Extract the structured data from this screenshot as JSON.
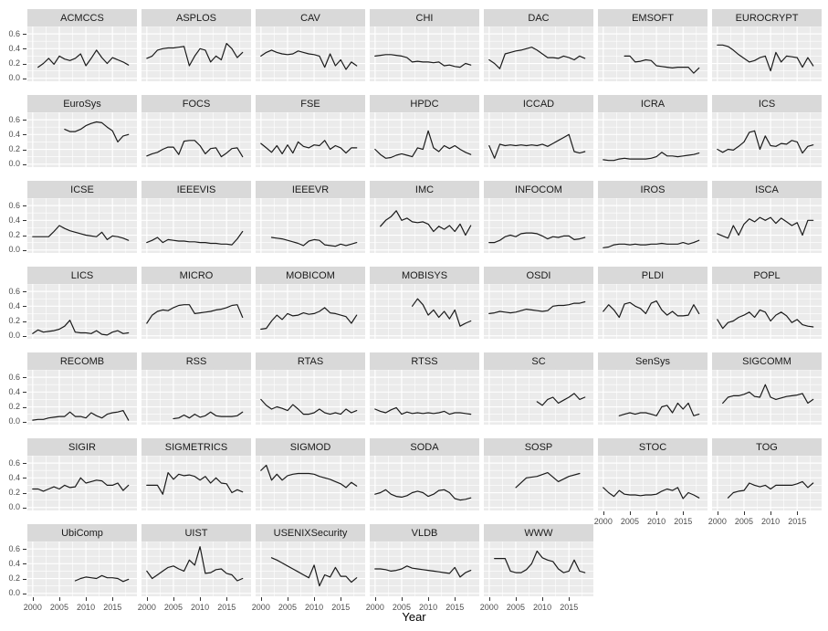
{
  "figure": {
    "x_axis_title": "Year",
    "x_tick_labels": [
      "2000",
      "2005",
      "2010",
      "2015"
    ],
    "y_tick_labels": [
      "0.6",
      "0.4",
      "0.2",
      "0.0"
    ]
  },
  "colors": {
    "strip_bg": "#d9d9d9",
    "panel_bg": "#ebebeb",
    "gridline": "#ffffff",
    "line": "#1b1b1b",
    "tick_text": "#4d4d4d",
    "strip_text": "#1a1a1a"
  },
  "chart_data": {
    "type": "line",
    "faceted": true,
    "title": "",
    "xlabel": "Year",
    "ylabel": "",
    "legend": "none",
    "grid": "major+minor-white-on-gray",
    "facets_per_row": 7,
    "x_range": [
      1999.0,
      2019.6
    ],
    "y_range": [
      -0.04,
      0.7
    ],
    "x_tick_values": [
      2000,
      2005,
      2010,
      2015
    ],
    "y_tick_values": [
      0.0,
      0.2,
      0.4,
      0.6
    ],
    "x_minor_ticks": [
      2002.5,
      2007.5,
      2012.5,
      2017.5
    ],
    "y_minor_ticks": [
      0.1,
      0.3,
      0.5,
      0.7
    ],
    "facets": [
      {
        "name": "ACMCCS",
        "start": 2001,
        "values": [
          0.15,
          0.2,
          0.27,
          0.19,
          0.3,
          0.26,
          0.24,
          0.27,
          0.33,
          0.17,
          0.27,
          0.38,
          0.28,
          0.2,
          0.28,
          0.25,
          0.22,
          0.18
        ]
      },
      {
        "name": "ASPLOS",
        "start": 2000,
        "values": [
          0.27,
          0.3,
          0.38,
          0.4,
          0.41,
          0.41,
          0.42,
          0.43,
          0.17,
          0.3,
          0.4,
          0.38,
          0.22,
          0.3,
          0.25,
          0.47,
          0.4,
          0.28,
          0.35
        ]
      },
      {
        "name": "CAV",
        "start": 2000,
        "values": [
          0.3,
          0.35,
          0.38,
          0.35,
          0.33,
          0.32,
          0.33,
          0.37,
          0.35,
          0.33,
          0.32,
          0.3,
          0.15,
          0.33,
          0.17,
          0.25,
          0.12,
          0.22,
          0.17
        ]
      },
      {
        "name": "CHI",
        "start": 2000,
        "values": [
          0.3,
          0.31,
          0.32,
          0.32,
          0.31,
          0.3,
          0.28,
          0.22,
          0.23,
          0.22,
          0.22,
          0.21,
          0.22,
          0.17,
          0.18,
          0.16,
          0.15,
          0.2,
          0.18
        ]
      },
      {
        "name": "DAC",
        "start": 2000,
        "values": [
          0.25,
          0.2,
          0.13,
          0.33,
          0.35,
          0.37,
          0.38,
          0.4,
          0.42,
          0.38,
          0.33,
          0.28,
          0.28,
          0.27,
          0.3,
          0.28,
          0.25,
          0.3,
          0.27
        ]
      },
      {
        "name": "EMSOFT",
        "start": 2004,
        "values": [
          0.3,
          0.3,
          0.22,
          0.23,
          0.25,
          0.24,
          0.17,
          0.16,
          0.15,
          0.14,
          0.15,
          0.15,
          0.15,
          0.07,
          0.14
        ]
      },
      {
        "name": "EUROCRYPT",
        "start": 2000,
        "values": [
          0.45,
          0.45,
          0.43,
          0.38,
          0.32,
          0.27,
          0.22,
          0.24,
          0.28,
          0.3,
          0.1,
          0.35,
          0.22,
          0.3,
          0.29,
          0.28,
          0.15,
          0.28,
          0.17
        ]
      },
      {
        "name": "EuroSys",
        "start": 2006,
        "values": [
          0.47,
          0.44,
          0.44,
          0.47,
          0.52,
          0.55,
          0.57,
          0.56,
          0.5,
          0.45,
          0.3,
          0.38,
          0.4
        ]
      },
      {
        "name": "FOCS",
        "start": 2000,
        "values": [
          0.11,
          0.14,
          0.16,
          0.2,
          0.23,
          0.23,
          0.13,
          0.31,
          0.32,
          0.32,
          0.25,
          0.14,
          0.21,
          0.22,
          0.1,
          0.15,
          0.21,
          0.22,
          0.1
        ]
      },
      {
        "name": "FSE",
        "start": 2000,
        "values": [
          0.28,
          0.22,
          0.16,
          0.25,
          0.14,
          0.26,
          0.15,
          0.3,
          0.24,
          0.22,
          0.26,
          0.25,
          0.32,
          0.2,
          0.25,
          0.22,
          0.15,
          0.22,
          0.22
        ]
      },
      {
        "name": "HPDC",
        "start": 2000,
        "values": [
          0.2,
          0.13,
          0.08,
          0.09,
          0.12,
          0.14,
          0.12,
          0.1,
          0.22,
          0.2,
          0.45,
          0.22,
          0.17,
          0.25,
          0.21,
          0.25,
          0.2,
          0.16,
          0.13
        ]
      },
      {
        "name": "ICCAD",
        "start": 2000,
        "values": [
          0.25,
          0.08,
          0.27,
          0.25,
          0.26,
          0.25,
          0.26,
          0.25,
          0.26,
          0.25,
          0.27,
          0.24,
          0.28,
          0.32,
          0.36,
          0.4,
          0.17,
          0.15,
          0.17
        ]
      },
      {
        "name": "ICRA",
        "start": 2000,
        "values": [
          0.06,
          0.05,
          0.05,
          0.07,
          0.08,
          0.07,
          0.07,
          0.07,
          0.07,
          0.08,
          0.1,
          0.16,
          0.11,
          0.11,
          0.1,
          0.11,
          0.12,
          0.13,
          0.15
        ]
      },
      {
        "name": "ICS",
        "start": 2000,
        "values": [
          0.2,
          0.16,
          0.2,
          0.19,
          0.24,
          0.3,
          0.43,
          0.45,
          0.2,
          0.38,
          0.25,
          0.24,
          0.28,
          0.27,
          0.32,
          0.3,
          0.15,
          0.24,
          0.26
        ]
      },
      {
        "name": "ICSE",
        "start": 2000,
        "values": [
          0.18,
          0.18,
          0.18,
          0.18,
          0.25,
          0.33,
          0.29,
          0.26,
          0.24,
          0.22,
          0.2,
          0.19,
          0.18,
          0.24,
          0.14,
          0.19,
          0.18,
          0.16,
          0.13
        ]
      },
      {
        "name": "IEEEVIS",
        "start": 2000,
        "values": [
          0.1,
          0.13,
          0.17,
          0.1,
          0.14,
          0.13,
          0.12,
          0.12,
          0.11,
          0.11,
          0.1,
          0.1,
          0.09,
          0.09,
          0.08,
          0.08,
          0.07,
          0.15,
          0.25
        ]
      },
      {
        "name": "IEEEVR",
        "start": 2002,
        "values": [
          0.17,
          0.16,
          0.15,
          0.13,
          0.11,
          0.09,
          0.06,
          0.12,
          0.14,
          0.13,
          0.07,
          0.06,
          0.05,
          0.08,
          0.06,
          0.08,
          0.1
        ]
      },
      {
        "name": "IMC",
        "start": 2001,
        "values": [
          0.32,
          0.4,
          0.45,
          0.53,
          0.4,
          0.43,
          0.38,
          0.37,
          0.38,
          0.35,
          0.25,
          0.32,
          0.28,
          0.33,
          0.25,
          0.35,
          0.2,
          0.33
        ]
      },
      {
        "name": "INFOCOM",
        "start": 2000,
        "values": [
          0.1,
          0.1,
          0.13,
          0.18,
          0.2,
          0.18,
          0.22,
          0.23,
          0.23,
          0.22,
          0.19,
          0.15,
          0.18,
          0.17,
          0.19,
          0.19,
          0.14,
          0.15,
          0.17
        ]
      },
      {
        "name": "IROS",
        "start": 2000,
        "values": [
          0.03,
          0.04,
          0.07,
          0.08,
          0.08,
          0.07,
          0.08,
          0.07,
          0.07,
          0.08,
          0.08,
          0.09,
          0.08,
          0.08,
          0.08,
          0.1,
          0.08,
          0.1,
          0.13
        ]
      },
      {
        "name": "ISCA",
        "start": 2000,
        "values": [
          0.22,
          0.19,
          0.16,
          0.33,
          0.2,
          0.35,
          0.42,
          0.38,
          0.44,
          0.4,
          0.44,
          0.36,
          0.43,
          0.38,
          0.33,
          0.37,
          0.2,
          0.4,
          0.4
        ]
      },
      {
        "name": "LICS",
        "start": 2000,
        "values": [
          0.03,
          0.08,
          0.05,
          0.06,
          0.07,
          0.09,
          0.13,
          0.21,
          0.05,
          0.04,
          0.04,
          0.03,
          0.07,
          0.02,
          0.01,
          0.05,
          0.07,
          0.03,
          0.04
        ]
      },
      {
        "name": "MICRO",
        "start": 2000,
        "values": [
          0.17,
          0.28,
          0.33,
          0.35,
          0.34,
          0.38,
          0.41,
          0.42,
          0.42,
          0.3,
          0.31,
          0.32,
          0.33,
          0.35,
          0.36,
          0.38,
          0.41,
          0.42,
          0.25
        ]
      },
      {
        "name": "MOBICOM",
        "start": 2000,
        "values": [
          0.09,
          0.1,
          0.2,
          0.28,
          0.22,
          0.3,
          0.27,
          0.28,
          0.31,
          0.29,
          0.3,
          0.33,
          0.38,
          0.31,
          0.3,
          0.28,
          0.26,
          0.17,
          0.28
        ]
      },
      {
        "name": "MOBISYS",
        "start": 2007,
        "values": [
          0.4,
          0.5,
          0.42,
          0.28,
          0.35,
          0.25,
          0.33,
          0.23,
          0.35,
          0.13,
          0.17,
          0.2
        ]
      },
      {
        "name": "OSDI",
        "start": 2000,
        "values": [
          0.3,
          0.31,
          0.33,
          0.32,
          0.31,
          0.32,
          0.34,
          0.36,
          0.35,
          0.34,
          0.33,
          0.34,
          0.4,
          0.41,
          0.41,
          0.42,
          0.44,
          0.44,
          0.46
        ]
      },
      {
        "name": "PLDI",
        "start": 2000,
        "values": [
          0.33,
          0.42,
          0.35,
          0.25,
          0.43,
          0.45,
          0.4,
          0.37,
          0.3,
          0.44,
          0.47,
          0.35,
          0.28,
          0.33,
          0.27,
          0.27,
          0.28,
          0.42,
          0.3
        ]
      },
      {
        "name": "POPL",
        "start": 2000,
        "values": [
          0.22,
          0.1,
          0.18,
          0.2,
          0.25,
          0.28,
          0.32,
          0.25,
          0.35,
          0.32,
          0.2,
          0.28,
          0.32,
          0.27,
          0.18,
          0.22,
          0.15,
          0.13,
          0.12
        ]
      },
      {
        "name": "RECOMB",
        "start": 2000,
        "values": [
          0.02,
          0.03,
          0.03,
          0.05,
          0.06,
          0.07,
          0.07,
          0.13,
          0.07,
          0.07,
          0.05,
          0.12,
          0.08,
          0.05,
          0.1,
          0.12,
          0.13,
          0.15,
          0.02
        ]
      },
      {
        "name": "RSS",
        "start": 2005,
        "values": [
          0.04,
          0.05,
          0.09,
          0.05,
          0.1,
          0.06,
          0.08,
          0.13,
          0.08,
          0.07,
          0.07,
          0.07,
          0.08,
          0.13
        ]
      },
      {
        "name": "RTAS",
        "start": 2000,
        "values": [
          0.3,
          0.22,
          0.17,
          0.2,
          0.18,
          0.15,
          0.23,
          0.17,
          0.1,
          0.1,
          0.12,
          0.17,
          0.12,
          0.1,
          0.12,
          0.1,
          0.17,
          0.12,
          0.15
        ]
      },
      {
        "name": "RTSS",
        "start": 2000,
        "values": [
          0.17,
          0.14,
          0.12,
          0.16,
          0.19,
          0.1,
          0.13,
          0.11,
          0.12,
          0.11,
          0.12,
          0.11,
          0.12,
          0.14,
          0.1,
          0.12,
          0.12,
          0.11,
          0.1
        ]
      },
      {
        "name": "SC",
        "start": 2009,
        "values": [
          0.27,
          0.22,
          0.3,
          0.33,
          0.25,
          0.29,
          0.33,
          0.38,
          0.3,
          0.33
        ]
      },
      {
        "name": "SenSys",
        "start": 2003,
        "values": [
          0.08,
          0.1,
          0.12,
          0.1,
          0.12,
          0.12,
          0.1,
          0.08,
          0.2,
          0.22,
          0.12,
          0.25,
          0.17,
          0.25,
          0.08,
          0.1
        ]
      },
      {
        "name": "SIGCOMM",
        "start": 2001,
        "values": [
          0.25,
          0.33,
          0.35,
          0.35,
          0.37,
          0.4,
          0.34,
          0.33,
          0.5,
          0.33,
          0.3,
          0.32,
          0.34,
          0.35,
          0.36,
          0.38,
          0.25,
          0.3
        ]
      },
      {
        "name": "SIGIR",
        "start": 2000,
        "values": [
          0.25,
          0.25,
          0.22,
          0.25,
          0.28,
          0.25,
          0.3,
          0.27,
          0.28,
          0.4,
          0.33,
          0.35,
          0.37,
          0.36,
          0.3,
          0.3,
          0.33,
          0.23,
          0.3
        ]
      },
      {
        "name": "SIGMETRICS",
        "start": 2000,
        "values": [
          0.3,
          0.3,
          0.3,
          0.18,
          0.47,
          0.38,
          0.45,
          0.43,
          0.44,
          0.42,
          0.37,
          0.42,
          0.33,
          0.4,
          0.33,
          0.32,
          0.2,
          0.24,
          0.21
        ]
      },
      {
        "name": "SIGMOD",
        "start": 2000,
        "values": [
          0.5,
          0.57,
          0.37,
          0.45,
          0.37,
          0.43,
          0.45,
          0.46,
          0.46,
          0.46,
          0.45,
          0.42,
          0.4,
          0.38,
          0.35,
          0.32,
          0.27,
          0.34,
          0.29
        ]
      },
      {
        "name": "SODA",
        "start": 2000,
        "values": [
          0.18,
          0.2,
          0.24,
          0.18,
          0.15,
          0.14,
          0.16,
          0.2,
          0.22,
          0.2,
          0.15,
          0.18,
          0.23,
          0.24,
          0.2,
          0.12,
          0.1,
          0.11,
          0.13
        ]
      },
      {
        "name": "SOSP",
        "start": 2005,
        "step": 2,
        "values": [
          0.27,
          0.4,
          0.42,
          0.47,
          0.35,
          0.42,
          0.46
        ]
      },
      {
        "name": "STOC",
        "start": 2000,
        "values": [
          0.27,
          0.2,
          0.15,
          0.23,
          0.18,
          0.17,
          0.17,
          0.16,
          0.17,
          0.17,
          0.18,
          0.22,
          0.25,
          0.23,
          0.27,
          0.12,
          0.2,
          0.17,
          0.13
        ]
      },
      {
        "name": "TOG",
        "start": 2002,
        "values": [
          0.13,
          0.2,
          0.22,
          0.23,
          0.33,
          0.3,
          0.28,
          0.3,
          0.25,
          0.3,
          0.3,
          0.3,
          0.3,
          0.32,
          0.35,
          0.27,
          0.33
        ]
      },
      {
        "name": "UbiComp",
        "start": 2008,
        "values": [
          0.17,
          0.2,
          0.22,
          0.21,
          0.2,
          0.24,
          0.21,
          0.21,
          0.2,
          0.16,
          0.19
        ]
      },
      {
        "name": "UIST",
        "start": 2000,
        "values": [
          0.3,
          0.2,
          0.25,
          0.3,
          0.35,
          0.37,
          0.33,
          0.3,
          0.45,
          0.38,
          0.63,
          0.27,
          0.28,
          0.32,
          0.33,
          0.27,
          0.25,
          0.17,
          0.2
        ]
      },
      {
        "name": "USENIXSecurity",
        "start": 2002,
        "values": [
          0.48,
          0.45,
          0.41,
          0.37,
          0.33,
          0.29,
          0.25,
          0.21,
          0.38,
          0.1,
          0.25,
          0.22,
          0.35,
          0.23,
          0.23,
          0.15,
          0.21
        ]
      },
      {
        "name": "VLDB",
        "start": 2000,
        "values": [
          0.33,
          0.33,
          0.32,
          0.3,
          0.31,
          0.33,
          0.37,
          0.34,
          0.33,
          0.32,
          0.31,
          0.3,
          0.29,
          0.28,
          0.27,
          0.35,
          0.22,
          0.28,
          0.31
        ]
      },
      {
        "name": "WWW",
        "start": 2001,
        "values": [
          0.47,
          0.47,
          0.47,
          0.3,
          0.28,
          0.28,
          0.32,
          0.4,
          0.57,
          0.48,
          0.45,
          0.43,
          0.33,
          0.28,
          0.3,
          0.45,
          0.3,
          0.28
        ]
      }
    ]
  }
}
